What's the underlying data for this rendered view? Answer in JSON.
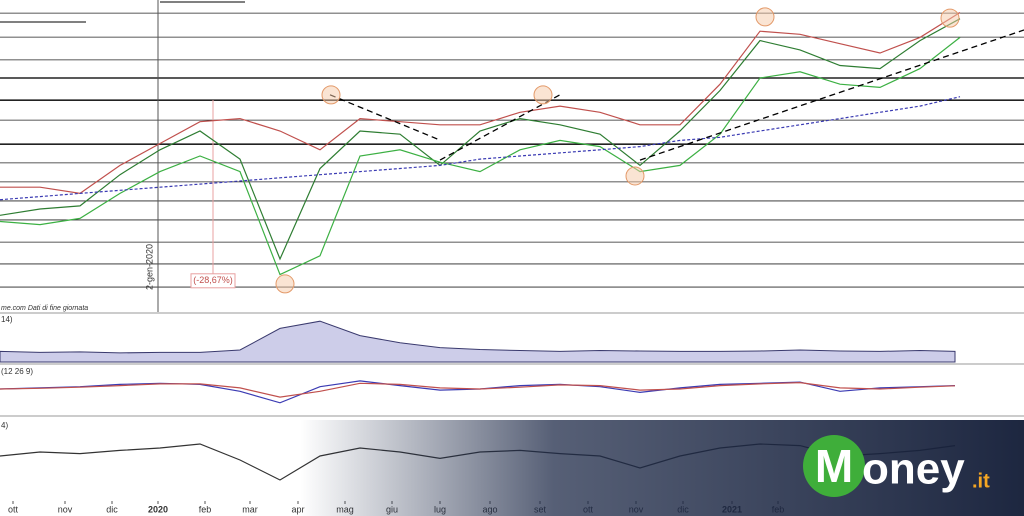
{
  "chart_data": [
    {
      "type": "line",
      "xlim": [
        0,
        1024
      ],
      "ylim": [
        0,
        100
      ],
      "x": [
        0,
        40,
        80,
        120,
        160,
        200,
        240,
        280,
        320,
        360,
        400,
        440,
        480,
        520,
        560,
        600,
        640,
        680,
        720,
        760,
        800,
        840,
        880,
        920,
        960
      ],
      "series": [
        {
          "color": "#2e7d32",
          "values": [
            31,
            33,
            34,
            44,
            52,
            58,
            49,
            17,
            46,
            58,
            57,
            47,
            58,
            62,
            60,
            57,
            47,
            58,
            71,
            87,
            84,
            79,
            78,
            87,
            94
          ]
        },
        {
          "color": "#c0504d",
          "values": [
            40,
            40,
            38,
            47,
            54,
            61,
            62,
            58,
            52,
            62,
            61,
            60,
            60,
            64,
            66,
            64,
            60,
            60,
            73,
            90,
            89,
            86,
            83,
            88,
            96
          ]
        },
        {
          "color": "#3cb043",
          "values": [
            29,
            28,
            30,
            38,
            45,
            50,
            45,
            12,
            18,
            50,
            52,
            48,
            45,
            52,
            55,
            53,
            45,
            47,
            57,
            75,
            77,
            73,
            72,
            78,
            88
          ]
        },
        {
          "color": "#3b3bb3",
          "dash": true,
          "values": [
            36,
            37,
            38,
            39,
            40,
            41,
            42,
            43,
            44,
            45,
            46,
            47,
            49,
            50,
            51,
            52,
            53,
            55,
            56,
            58,
            60,
            62,
            64,
            66,
            69
          ]
        }
      ],
      "levels": [
        95.8,
        88.1,
        80.8,
        75,
        67.9,
        61.5,
        53.8,
        47.8,
        41.7,
        35.6,
        29.5,
        22.4,
        15.4,
        8
      ],
      "trendlines": [
        {
          "x": [
            330,
            440
          ],
          "values": [
            69.6,
            55.1
          ]
        },
        {
          "x": [
            440,
            560
          ],
          "values": [
            48.7,
            69.6
          ]
        },
        {
          "x": [
            640,
            1024
          ],
          "values": [
            48.7,
            90.4
          ]
        }
      ],
      "markers": {
        "x": [
          765,
          331,
          543,
          285,
          635,
          950
        ],
        "values": [
          94.6,
          69.6,
          69.6,
          9,
          43.6,
          94.2
        ]
      },
      "annotation": {
        "text": "(-28,67%)",
        "x": 213,
        "y": 10
      },
      "event": {
        "x": 158,
        "label": "2-gen-2020"
      },
      "source": "me.com Dati di fine giornata",
      "xticks": [
        {
          "value": 13,
          "label": "ott"
        },
        {
          "value": 65,
          "label": "nov"
        },
        {
          "value": 112,
          "label": "dic"
        },
        {
          "value": 158,
          "label": "2020"
        },
        {
          "value": 205,
          "label": "feb"
        },
        {
          "value": 250,
          "label": "mar"
        },
        {
          "value": 298,
          "label": "apr"
        },
        {
          "value": 345,
          "label": "mag"
        },
        {
          "value": 392,
          "label": "giu"
        },
        {
          "value": 440,
          "label": "lug"
        },
        {
          "value": 490,
          "label": "ago"
        },
        {
          "value": 540,
          "label": "set"
        },
        {
          "value": 588,
          "label": "ott"
        },
        {
          "value": 636,
          "label": "nov"
        },
        {
          "value": 683,
          "label": "dic"
        },
        {
          "value": 732,
          "label": "2021"
        },
        {
          "value": 778,
          "label": "feb"
        }
      ]
    },
    {
      "type": "area",
      "label": "14)",
      "color": "#3a3a6e",
      "xlim": [
        0,
        1024
      ],
      "ylim": [
        0,
        100
      ],
      "x": [
        0,
        40,
        80,
        120,
        160,
        200,
        240,
        280,
        320,
        360,
        400,
        440,
        480,
        520,
        560,
        600,
        640,
        680,
        720,
        760,
        800,
        840,
        880,
        920,
        955
      ],
      "values": [
        22,
        20,
        21,
        19,
        20,
        20,
        25,
        70,
        85,
        55,
        40,
        30,
        26,
        24,
        22,
        24,
        23,
        22,
        22,
        23,
        25,
        23,
        22,
        24,
        22
      ]
    },
    {
      "type": "line",
      "label": "(12 26 9)",
      "xlim": [
        0,
        1024
      ],
      "ylim": [
        -100,
        100
      ],
      "x": [
        0,
        40,
        80,
        120,
        160,
        200,
        240,
        280,
        320,
        360,
        400,
        440,
        480,
        520,
        560,
        600,
        640,
        680,
        720,
        760,
        800,
        840,
        880,
        920,
        955
      ],
      "series": [
        {
          "color": "#3b3bb3",
          "values": [
            0,
            5,
            10,
            20,
            25,
            20,
            -10,
            -60,
            10,
            35,
            15,
            -5,
            0,
            15,
            20,
            10,
            -15,
            5,
            20,
            25,
            30,
            -10,
            5,
            10,
            15
          ]
        },
        {
          "color": "#c0504d",
          "values": [
            0,
            3,
            8,
            15,
            22,
            22,
            5,
            -35,
            -10,
            25,
            20,
            5,
            0,
            8,
            18,
            15,
            -5,
            0,
            15,
            22,
            28,
            5,
            0,
            8,
            14
          ]
        }
      ]
    },
    {
      "type": "line",
      "label": "4)",
      "xlim": [
        0,
        1024
      ],
      "ylim": [
        0,
        100
      ],
      "x": [
        0,
        40,
        80,
        120,
        160,
        200,
        240,
        280,
        320,
        360,
        400,
        440,
        480,
        520,
        560,
        600,
        640,
        680,
        720,
        760,
        800,
        840,
        880,
        920,
        955
      ],
      "series": [
        {
          "color": "#333333",
          "values": [
            55,
            60,
            58,
            62,
            65,
            70,
            50,
            25,
            55,
            65,
            60,
            52,
            60,
            62,
            58,
            55,
            40,
            55,
            65,
            70,
            68,
            55,
            58,
            62,
            68
          ]
        }
      ]
    }
  ],
  "logo": {
    "initial": "M",
    "rest": "oney",
    "suffix": ".it"
  }
}
